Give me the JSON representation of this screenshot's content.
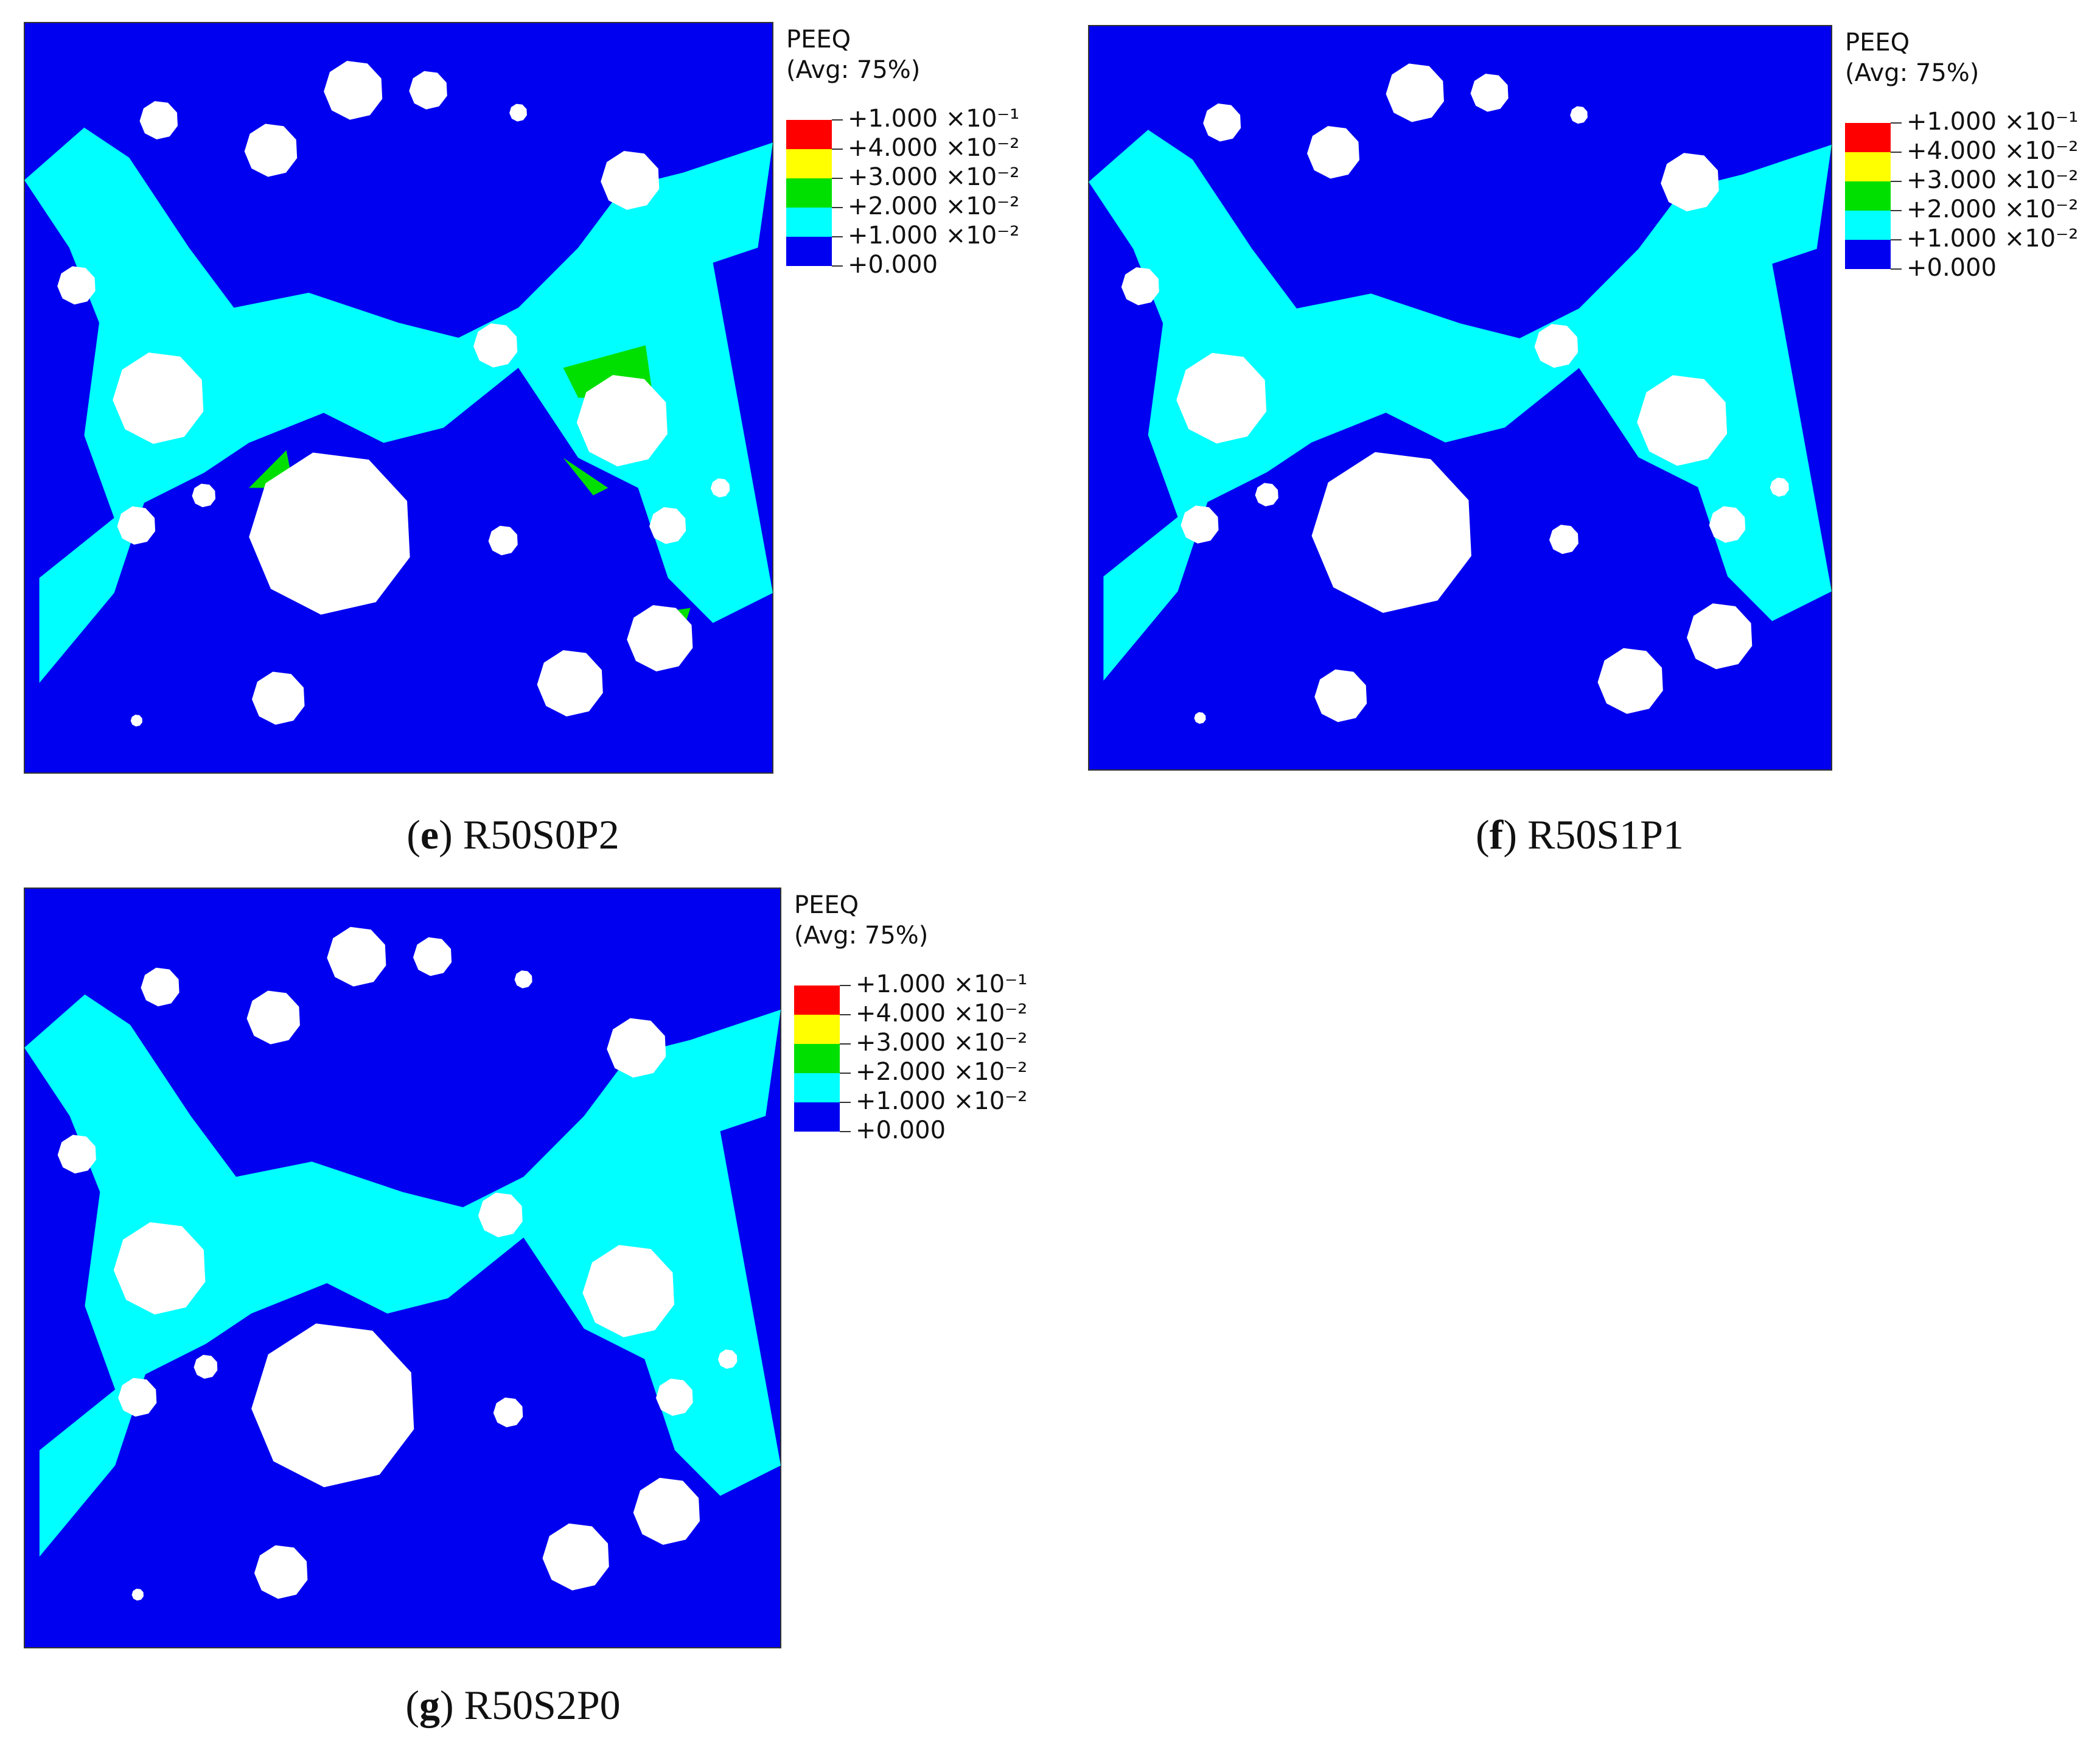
{
  "legend": {
    "title": "PEEQ",
    "subtitle": "(Avg: 75%)",
    "labels": [
      "+1.000 ×10⁻¹",
      "+4.000 ×10⁻²",
      "+3.000 ×10⁻²",
      "+2.000 ×10⁻²",
      "+1.000 ×10⁻²",
      "+0.000"
    ],
    "colors": [
      "#ff0000",
      "#ffff00",
      "#00e000",
      "#00ffff",
      "#0000f0"
    ]
  },
  "panels": [
    {
      "caption": [
        "(",
        "e",
        ") R50S0P2"
      ]
    },
    {
      "caption": [
        "(",
        "f",
        ") R50S1P1"
      ]
    },
    {
      "caption": [
        "(",
        "g",
        ") R50S2P0"
      ]
    }
  ]
}
